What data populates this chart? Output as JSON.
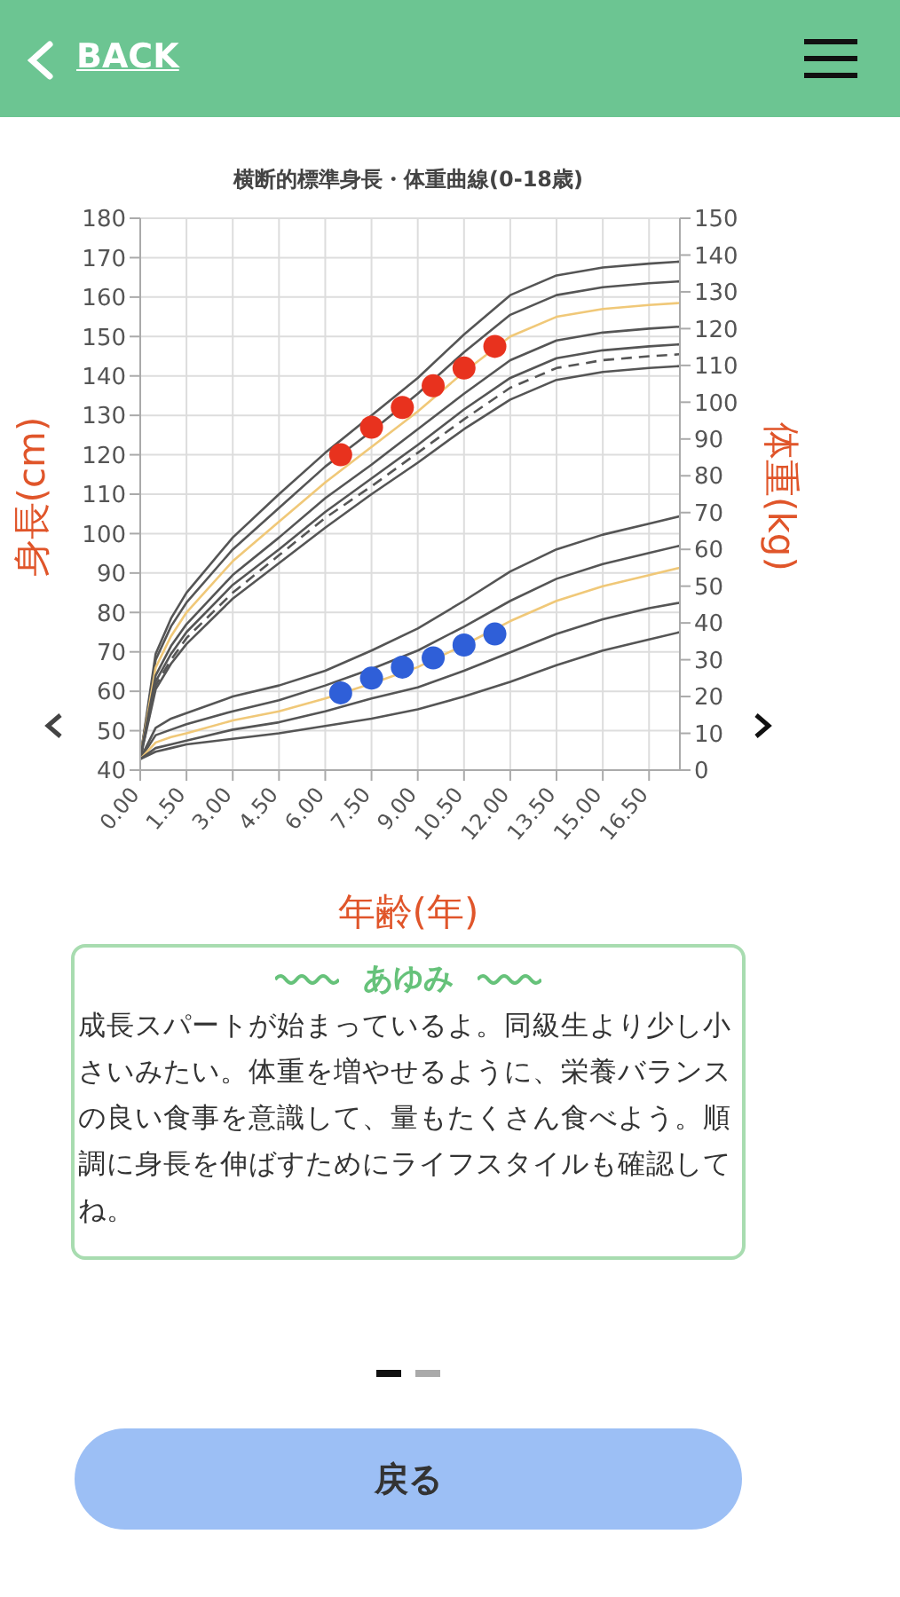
{
  "chart_data": [
    {
      "type": "line",
      "title": "横断的標準身長・体重曲線(0-18歳)",
      "xlabel": "年齢(年)",
      "ylabel": "身長(cm)",
      "y2label": "体重(kg)",
      "xlim": [
        0,
        17.5
      ],
      "xticks": [
        {
          "value": 0,
          "label": "0.00"
        },
        {
          "value": 1.5,
          "label": "1.50"
        },
        {
          "value": 3,
          "label": "3.00"
        },
        {
          "value": 4.5,
          "label": "4.50"
        },
        {
          "value": 6,
          "label": "6.00"
        },
        {
          "value": 7.5,
          "label": "7.50"
        },
        {
          "value": 9,
          "label": "9.00"
        },
        {
          "value": 10.5,
          "label": "10.50"
        },
        {
          "value": 12,
          "label": "12.00"
        },
        {
          "value": 13.5,
          "label": "13.50"
        },
        {
          "value": 15,
          "label": "15.00"
        },
        {
          "value": 16.5,
          "label": "16.50"
        }
      ],
      "ylim": [
        40,
        180
      ],
      "yticks": [
        40,
        50,
        60,
        70,
        80,
        90,
        100,
        110,
        120,
        130,
        140,
        150,
        160,
        170,
        180
      ],
      "y2lim": [
        0,
        150
      ],
      "y2ticks": [
        0,
        10,
        20,
        30,
        40,
        50,
        60,
        70,
        80,
        90,
        100,
        110,
        120,
        130,
        140,
        150
      ],
      "grid": true,
      "marker": "none",
      "x": [
        0,
        0.5,
        1,
        1.5,
        3,
        4.5,
        6,
        7.5,
        9,
        10.5,
        12,
        13.5,
        15,
        16.5,
        17.5
      ],
      "series": [
        {
          "color": "#555555",
          "values": [
            43,
            69.5,
            78.5,
            85,
            99,
            110,
            120.5,
            130,
            139.5,
            150.5,
            160.5,
            165.5,
            167.5,
            168.5,
            169
          ]
        },
        {
          "color": "#555555",
          "values": [
            43,
            68,
            76.5,
            82.5,
            96,
            106.5,
            117,
            126,
            135.5,
            146,
            155.5,
            160.5,
            162.5,
            163.5,
            164
          ]
        },
        {
          "color": "#f0c878",
          "values": [
            43,
            66,
            74,
            80,
            93,
            103,
            113,
            122,
            131,
            141,
            150,
            155,
            157,
            158,
            158.5
          ]
        },
        {
          "color": "#555555",
          "values": [
            43,
            64,
            71.5,
            77,
            89.5,
            99,
            109,
            117.5,
            126.5,
            135.5,
            144,
            149,
            151,
            152,
            152.5
          ]
        },
        {
          "color": "#555555",
          "values": [
            43,
            62.5,
            69.5,
            75,
            87,
            96,
            105.5,
            114,
            122.5,
            131.5,
            139.5,
            144.5,
            146.5,
            147.5,
            148
          ]
        },
        {
          "color": "#555555",
          "line_style": "dashed",
          "values": [
            43,
            61.5,
            68,
            73.5,
            85,
            94.5,
            104,
            112,
            120.5,
            129,
            137,
            142,
            144,
            145,
            145.5
          ]
        },
        {
          "color": "#555555",
          "values": [
            43,
            60.5,
            67,
            72,
            83.5,
            92.5,
            101.5,
            110,
            118,
            126.5,
            134,
            139,
            141,
            142,
            142.5
          ]
        },
        {
          "color": "#555555",
          "axis": "y2",
          "values": [
            3,
            11.5,
            14,
            15.5,
            20,
            23,
            27,
            32.5,
            38.5,
            46,
            54,
            60,
            64,
            67,
            69
          ]
        },
        {
          "color": "#555555",
          "axis": "y2",
          "values": [
            3,
            9.5,
            11,
            12.5,
            16,
            19,
            23,
            27.5,
            32.5,
            39,
            46,
            52,
            56,
            59,
            61
          ]
        },
        {
          "color": "#f0c878",
          "axis": "y2",
          "values": [
            3,
            7.5,
            9,
            10,
            13.5,
            16,
            19.5,
            23.5,
            28,
            34,
            40.5,
            46,
            50,
            53,
            55
          ]
        },
        {
          "color": "#555555",
          "axis": "y2",
          "values": [
            3,
            6,
            7,
            8,
            11,
            13,
            16,
            19.5,
            22.5,
            27,
            32,
            37,
            41,
            44,
            45.5
          ]
        },
        {
          "color": "#555555",
          "axis": "y2",
          "values": [
            3,
            5,
            6,
            7,
            8.5,
            10,
            12,
            14,
            16.5,
            20,
            24,
            28.5,
            32.5,
            35.5,
            37.5
          ]
        },
        {
          "type": "scatter",
          "marker": "circle",
          "color": "#e8321e",
          "x": [
            6.5,
            7.5,
            8.5,
            9.5,
            10.5,
            11.5
          ],
          "values": [
            120,
            127,
            132,
            137.5,
            142,
            147.5
          ]
        },
        {
          "type": "scatter",
          "marker": "circle",
          "color": "#2f5fd8",
          "axis": "y2",
          "x": [
            6.5,
            7.5,
            8.5,
            9.5,
            10.5,
            11.5
          ],
          "values": [
            21,
            25,
            28,
            30.5,
            34,
            37
          ]
        }
      ]
    },
    {
      "type": "other",
      "title": "あゆみ",
      "annotations": [
        "成長スパートが始まっているよ。同級生より少し小さいみたい。体重を増やせるように、栄養バランスの良い食事を意識して、量もたくさん食べよう。順調に身長を伸ばすためにライフスタイルも確認してね。"
      ]
    },
    {
      "type": "other",
      "annotations": [
        "BACK",
        "戻る"
      ]
    }
  ]
}
